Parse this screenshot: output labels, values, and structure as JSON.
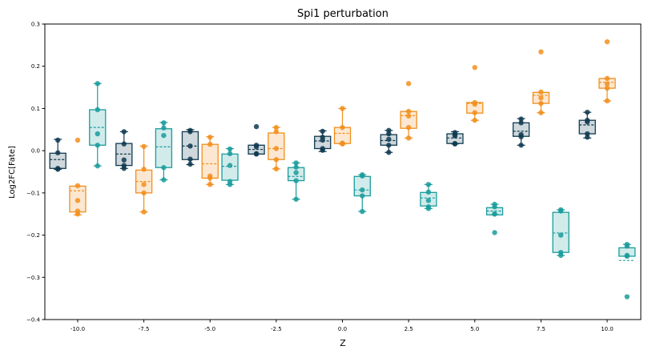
{
  "chart_data": {
    "type": "box",
    "title": "Spi1 perturbation",
    "xlabel": "Z",
    "ylabel": "Log2FC[Fate]",
    "xlim": [
      -11.24,
      11.27
    ],
    "ylim": [
      -0.4,
      0.3
    ],
    "x_ticks": [
      -10,
      -7.5,
      -5,
      -2.5,
      0,
      2.5,
      5,
      7.5,
      10
    ],
    "x_tick_labels": [
      "-10.0",
      "-7.5",
      "-5.0",
      "-2.5",
      "0.0",
      "2.5",
      "5.0",
      "7.5",
      "10.0"
    ],
    "y_ticks": [
      0.3,
      0.2,
      0.1,
      0.0,
      -0.1,
      -0.2,
      -0.3,
      -0.4
    ],
    "y_tick_labels": [
      "0.3",
      "0.2",
      "0.1",
      "0.0",
      "−0.1",
      "−0.2",
      "−0.3",
      "−0.4"
    ],
    "grid": false,
    "series_colors": [
      "#0f3a50",
      "#f28e1c",
      "#1a9c9c"
    ],
    "series_offsets": [
      -0.75,
      0,
      0.75
    ],
    "groups": [
      {
        "z": -10,
        "boxes": [
          {
            "q1": -0.042,
            "q3": -0.006,
            "mean": -0.021,
            "wlo": -0.044,
            "whi": 0.027,
            "points": [
              0.025,
              -0.005,
              -0.042,
              -0.044
            ]
          },
          {
            "q1": -0.145,
            "q3": -0.084,
            "mean": -0.095,
            "wlo": -0.152,
            "whi": -0.084,
            "points": [
              -0.083,
              -0.118,
              -0.143,
              -0.15,
              0.025
            ]
          },
          {
            "q1": 0.013,
            "q3": 0.097,
            "mean": 0.055,
            "wlo": -0.036,
            "whi": 0.159,
            "points": [
              0.159,
              0.097,
              0.04,
              0.013,
              -0.036
            ]
          }
        ]
      },
      {
        "z": -7.5,
        "boxes": [
          {
            "q1": -0.035,
            "q3": 0.017,
            "mean": -0.008,
            "wlo": -0.042,
            "whi": 0.045,
            "points": [
              0.045,
              0.016,
              -0.022,
              -0.035,
              -0.042
            ]
          },
          {
            "q1": -0.1,
            "q3": -0.046,
            "mean": -0.073,
            "wlo": -0.145,
            "whi": 0.011,
            "points": [
              0.01,
              -0.044,
              -0.08,
              -0.1,
              -0.145
            ]
          },
          {
            "q1": -0.04,
            "q3": 0.052,
            "mean": 0.009,
            "wlo": -0.069,
            "whi": 0.067,
            "points": [
              0.066,
              0.054,
              0.036,
              -0.04,
              -0.069
            ]
          }
        ]
      },
      {
        "z": -5,
        "boxes": [
          {
            "q1": -0.021,
            "q3": 0.045,
            "mean": 0.011,
            "wlo": -0.033,
            "whi": 0.05,
            "points": [
              0.048,
              0.045,
              0.011,
              -0.02,
              -0.032
            ]
          },
          {
            "q1": -0.065,
            "q3": 0.015,
            "mean": -0.031,
            "wlo": -0.08,
            "whi": 0.033,
            "points": [
              0.032,
              0.015,
              -0.06,
              -0.065,
              -0.08
            ]
          },
          {
            "q1": -0.07,
            "q3": -0.008,
            "mean": -0.037,
            "wlo": -0.08,
            "whi": 0.005,
            "points": [
              0.004,
              -0.007,
              -0.035,
              -0.073,
              -0.08
            ]
          }
        ]
      },
      {
        "z": -2.5,
        "boxes": [
          {
            "q1": -0.008,
            "q3": 0.013,
            "mean": 0.003,
            "wlo": -0.008,
            "whi": 0.013,
            "points": [
              0.013,
              0.009,
              -0.007,
              -0.008,
              0.057
            ]
          },
          {
            "q1": -0.021,
            "q3": 0.042,
            "mean": 0.005,
            "wlo": -0.043,
            "whi": 0.055,
            "points": [
              0.055,
              0.045,
              0.005,
              -0.021,
              -0.043
            ]
          },
          {
            "q1": -0.071,
            "q3": -0.04,
            "mean": -0.061,
            "wlo": -0.115,
            "whi": -0.029,
            "points": [
              -0.029,
              -0.039,
              -0.052,
              -0.071,
              -0.115
            ]
          }
        ]
      },
      {
        "z": 0,
        "boxes": [
          {
            "q1": 0.005,
            "q3": 0.034,
            "mean": 0.023,
            "wlo": -0.002,
            "whi": 0.047,
            "points": [
              0.046,
              0.032,
              0.025,
              0.005,
              0.001
            ]
          },
          {
            "q1": 0.017,
            "q3": 0.055,
            "mean": 0.041,
            "wlo": 0.016,
            "whi": 0.1,
            "points": [
              0.1,
              0.055,
              0.018,
              0.016,
              0.017
            ]
          },
          {
            "q1": -0.107,
            "q3": -0.061,
            "mean": -0.093,
            "wlo": -0.144,
            "whi": -0.057,
            "points": [
              -0.057,
              -0.06,
              -0.093,
              -0.107,
              -0.144
            ]
          }
        ]
      },
      {
        "z": 2.5,
        "boxes": [
          {
            "q1": 0.013,
            "q3": 0.038,
            "mean": 0.024,
            "wlo": -0.004,
            "whi": 0.048,
            "points": [
              0.048,
              0.04,
              0.027,
              0.013,
              -0.004
            ]
          },
          {
            "q1": 0.053,
            "q3": 0.093,
            "mean": 0.083,
            "wlo": 0.03,
            "whi": 0.093,
            "points": [
              0.093,
              0.082,
              0.055,
              0.03,
              0.159
            ]
          },
          {
            "q1": -0.131,
            "q3": -0.099,
            "mean": -0.112,
            "wlo": -0.137,
            "whi": -0.08,
            "points": [
              -0.08,
              -0.098,
              -0.118,
              -0.133,
              -0.137
            ]
          }
        ]
      },
      {
        "z": 5,
        "boxes": [
          {
            "q1": 0.017,
            "q3": 0.04,
            "mean": 0.03,
            "wlo": 0.016,
            "whi": 0.045,
            "points": [
              0.043,
              0.038,
              0.035,
              0.017,
              0.016
            ]
          },
          {
            "q1": 0.089,
            "q3": 0.114,
            "mean": 0.112,
            "wlo": 0.072,
            "whi": 0.114,
            "points": [
              0.114,
              0.11,
              0.09,
              0.072,
              0.197
            ]
          },
          {
            "q1": -0.152,
            "q3": -0.135,
            "mean": -0.143,
            "wlo": -0.152,
            "whi": -0.127,
            "points": [
              -0.127,
              -0.133,
              -0.15,
              -0.15,
              -0.194
            ]
          }
        ]
      },
      {
        "z": 7.5,
        "boxes": [
          {
            "q1": 0.034,
            "q3": 0.066,
            "mean": 0.046,
            "wlo": 0.013,
            "whi": 0.076,
            "points": [
              0.075,
              0.066,
              0.038,
              0.033,
              0.013
            ]
          },
          {
            "q1": 0.112,
            "q3": 0.138,
            "mean": 0.131,
            "wlo": 0.09,
            "whi": 0.138,
            "points": [
              0.139,
              0.125,
              0.112,
              0.09,
              0.234
            ]
          },
          {
            "q1": -0.241,
            "q3": -0.146,
            "mean": -0.195,
            "wlo": -0.248,
            "whi": -0.14,
            "points": [
              -0.14,
              -0.143,
              -0.2,
              -0.241,
              -0.248
            ]
          }
        ]
      },
      {
        "z": 10,
        "boxes": [
          {
            "q1": 0.04,
            "q3": 0.072,
            "mean": 0.061,
            "wlo": 0.03,
            "whi": 0.091,
            "points": [
              0.091,
              0.072,
              0.068,
              0.04,
              0.032
            ]
          },
          {
            "q1": 0.148,
            "q3": 0.171,
            "mean": 0.162,
            "wlo": 0.118,
            "whi": 0.171,
            "points": [
              0.171,
              0.158,
              0.148,
              0.118,
              0.258
            ]
          },
          {
            "q1": -0.25,
            "q3": -0.23,
            "mean": -0.26,
            "wlo": -0.25,
            "whi": -0.222,
            "points": [
              -0.222,
              -0.226,
              -0.248,
              -0.25,
              -0.346
            ]
          }
        ]
      }
    ]
  }
}
